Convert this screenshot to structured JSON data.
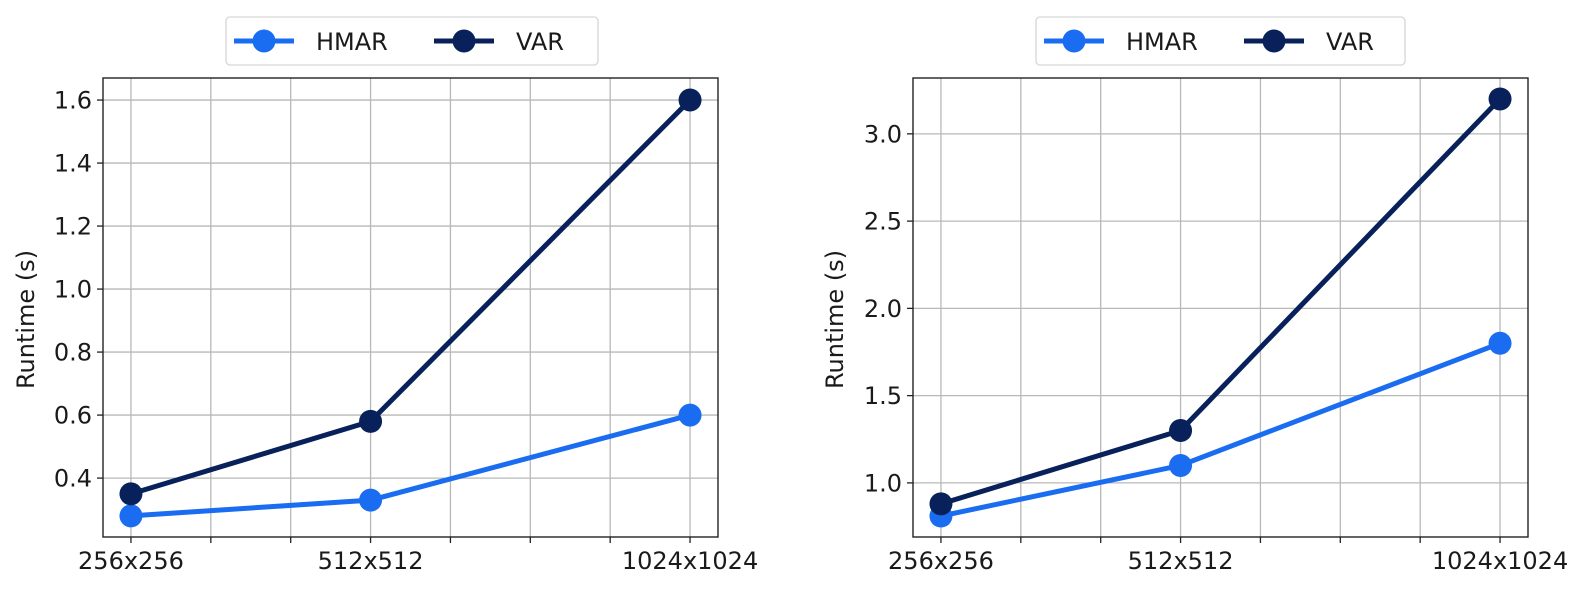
{
  "chart_data": [
    {
      "type": "line",
      "title": "",
      "xlabel": "",
      "ylabel": "Runtime (s)",
      "categories": [
        "256x256",
        "512x512",
        "1024x1024"
      ],
      "x_positions": [
        0,
        3,
        7
      ],
      "x_grid": [
        0,
        1,
        2,
        3,
        4,
        5,
        6,
        7
      ],
      "xlim": [
        -0.35,
        7.35
      ],
      "yticks": [
        0.4,
        0.6,
        0.8,
        1.0,
        1.2,
        1.4,
        1.6
      ],
      "ytick_labels": [
        "0.4",
        "0.6",
        "0.8",
        "1.0",
        "1.2",
        "1.4",
        "1.6"
      ],
      "ylim": [
        0.213,
        1.67
      ],
      "grid": true,
      "legend_position": "upper center (outside)",
      "series": [
        {
          "name": "HMAR",
          "color": "#1a6df0",
          "values": [
            0.28,
            0.33,
            0.6
          ]
        },
        {
          "name": "VAR",
          "color": "#08215a",
          "values": [
            0.35,
            0.58,
            1.6
          ]
        }
      ]
    },
    {
      "type": "line",
      "title": "",
      "xlabel": "",
      "ylabel": "Runtime (s)",
      "categories": [
        "256x256",
        "512x512",
        "1024x1024"
      ],
      "x_positions": [
        0,
        3,
        7
      ],
      "x_grid": [
        0,
        1,
        2,
        3,
        4,
        5,
        6,
        7
      ],
      "xlim": [
        -0.35,
        7.35
      ],
      "yticks": [
        1.0,
        1.5,
        2.0,
        2.5,
        3.0
      ],
      "ytick_labels": [
        "1.0",
        "1.5",
        "2.0",
        "2.5",
        "3.0"
      ],
      "ylim": [
        0.69,
        3.32
      ],
      "grid": true,
      "legend_position": "upper center (outside)",
      "series": [
        {
          "name": "HMAR",
          "color": "#1a6df0",
          "values": [
            0.81,
            1.1,
            1.8
          ]
        },
        {
          "name": "VAR",
          "color": "#08215a",
          "values": [
            0.88,
            1.3,
            3.2
          ]
        }
      ]
    }
  ],
  "panels": [
    {
      "legend": [
        {
          "label": "HMAR",
          "color": "#1a6df0"
        },
        {
          "label": "VAR",
          "color": "#08215a"
        }
      ]
    },
    {
      "legend": [
        {
          "label": "HMAR",
          "color": "#1a6df0"
        },
        {
          "label": "VAR",
          "color": "#08215a"
        }
      ]
    }
  ]
}
